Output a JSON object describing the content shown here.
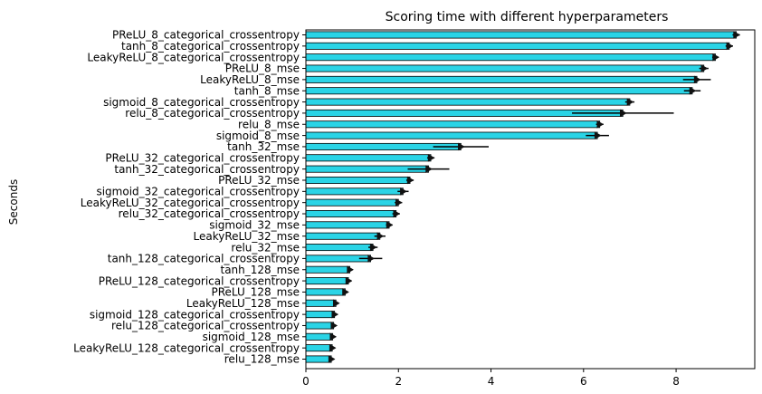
{
  "chart_data": {
    "type": "bar",
    "orientation": "horizontal",
    "title": "Scoring time with different hyperparameters",
    "xlabel": "",
    "ylabel": "Seconds",
    "xlim": [
      0,
      9.7
    ],
    "xticks": [
      0,
      2,
      4,
      6,
      8
    ],
    "grid": false,
    "bar_color": "#2ad4e6",
    "edge_color": "#000000",
    "error_color": "#000000",
    "categories": [
      "PReLU_8_categorical_crossentropy",
      "tanh_8_categorical_crossentropy",
      "LeakyReLU_8_categorical_crossentropy",
      "PReLU_8_mse",
      "LeakyReLU_8_mse",
      "tanh_8_mse",
      "sigmoid_8_categorical_crossentropy",
      "relu_8_categorical_crossentropy",
      "relu_8_mse",
      "sigmoid_8_mse",
      "tanh_32_mse",
      "PReLU_32_categorical_crossentropy",
      "tanh_32_categorical_crossentropy",
      "PReLU_32_mse",
      "sigmoid_32_categorical_crossentropy",
      "LeakyReLU_32_categorical_crossentropy",
      "relu_32_categorical_crossentropy",
      "sigmoid_32_mse",
      "LeakyReLU_32_mse",
      "relu_32_mse",
      "tanh_128_categorical_crossentropy",
      "tanh_128_mse",
      "PReLU_128_categorical_crossentropy",
      "PReLU_128_mse",
      "LeakyReLU_128_mse",
      "sigmoid_128_categorical_crossentropy",
      "relu_128_categorical_crossentropy",
      "sigmoid_128_mse",
      "LeakyReLU_128_categorical_crossentropy",
      "relu_128_mse"
    ],
    "values": [
      9.3,
      9.15,
      8.85,
      8.6,
      8.45,
      8.35,
      7.0,
      6.85,
      6.35,
      6.3,
      3.35,
      2.7,
      2.65,
      2.25,
      2.1,
      2.0,
      1.95,
      1.8,
      1.6,
      1.45,
      1.4,
      0.95,
      0.92,
      0.85,
      0.65,
      0.62,
      0.6,
      0.58,
      0.57,
      0.55
    ],
    "errors": [
      0.08,
      0.08,
      0.07,
      0.1,
      0.3,
      0.18,
      0.1,
      1.1,
      0.08,
      0.25,
      0.6,
      0.08,
      0.45,
      0.08,
      0.12,
      0.08,
      0.08,
      0.07,
      0.12,
      0.1,
      0.25,
      0.06,
      0.06,
      0.06,
      0.05,
      0.05,
      0.05,
      0.05,
      0.05,
      0.05
    ]
  }
}
